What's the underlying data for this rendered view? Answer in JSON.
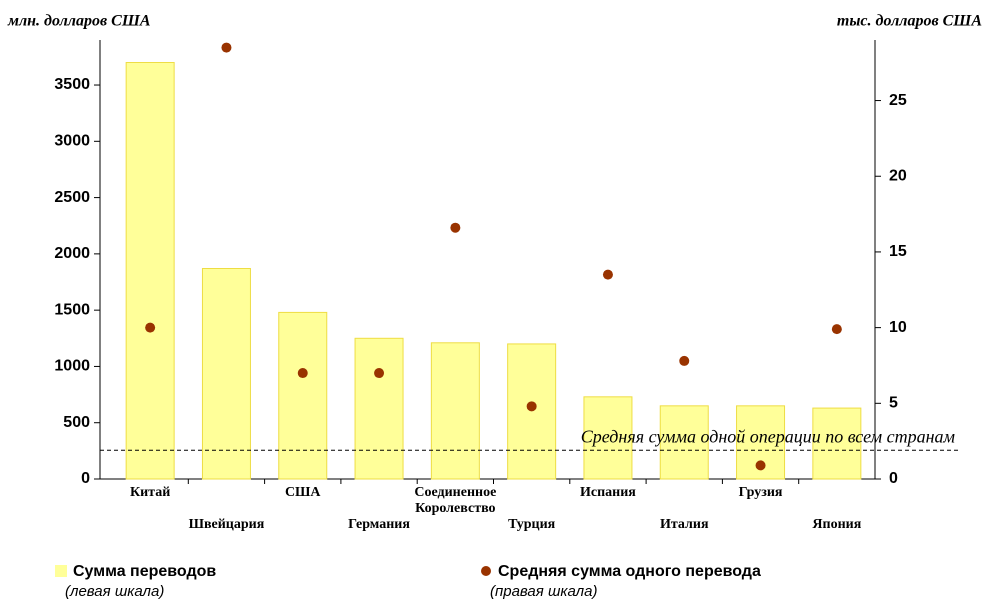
{
  "chart_data": {
    "type": "bar",
    "y_label": "млн. долларов США",
    "y2_label": "тыс. долларов США",
    "categories": [
      "Китай",
      "Швейцария",
      "США",
      "Германия",
      "Соединенное Королевство",
      "Турция",
      "Испания",
      "Италия",
      "Грузия",
      "Япония"
    ],
    "series": [
      {
        "name": "Сумма переводов",
        "scale_note": "(левая шкала)",
        "type": "bar",
        "color": "#ffff99",
        "values": [
          3700,
          1870,
          1480,
          1250,
          1210,
          1200,
          730,
          650,
          650,
          630
        ]
      },
      {
        "name": "Средняя сумма одного перевода",
        "scale_note": "(правая шкала)",
        "type": "scatter",
        "axis": "y2",
        "color": "#993300",
        "values": [
          10.0,
          28.5,
          7.0,
          7.0,
          16.6,
          4.8,
          13.5,
          7.8,
          0.9,
          9.9
        ]
      }
    ],
    "ylim": [
      0,
      3900
    ],
    "yticks": [
      0,
      500,
      1000,
      1500,
      2000,
      2500,
      3000,
      3500
    ],
    "y2lim": [
      0,
      29
    ],
    "y2ticks": [
      0,
      5,
      10,
      15,
      20,
      25
    ],
    "average_line": {
      "label": "Средняя сумма одной операции по всем странам",
      "value": 1.9,
      "axis": "y2"
    }
  }
}
